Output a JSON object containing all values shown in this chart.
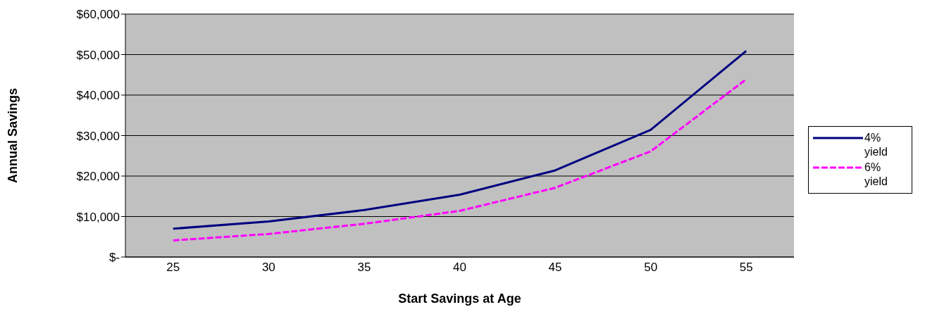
{
  "chart_data": {
    "type": "line",
    "xlabel": "Start Savings at Age",
    "ylabel": "Annual Savings",
    "categories": [
      "25",
      "30",
      "35",
      "40",
      "45",
      "50",
      "55"
    ],
    "series": [
      {
        "name": "4% yield",
        "color": "#000080",
        "line_style": "solid",
        "values": [
          7000,
          8800,
          11600,
          15400,
          21400,
          31400,
          50900
        ]
      },
      {
        "name": "6% yield",
        "color": "#ff00ff",
        "line_style": "dashed",
        "values": [
          4100,
          5700,
          8200,
          11400,
          17100,
          26100,
          43900
        ]
      }
    ],
    "ylim": [
      0,
      60000
    ],
    "yticks": [
      {
        "value": 0,
        "label": "$-"
      },
      {
        "value": 10000,
        "label": "$10,000"
      },
      {
        "value": 20000,
        "label": "$20,000"
      },
      {
        "value": 30000,
        "label": "$30,000"
      },
      {
        "value": 40000,
        "label": "$40,000"
      },
      {
        "value": 50000,
        "label": "$50,000"
      },
      {
        "value": 60000,
        "label": "$60,000"
      }
    ],
    "grid": "y",
    "legend": "right",
    "marker": "none"
  }
}
